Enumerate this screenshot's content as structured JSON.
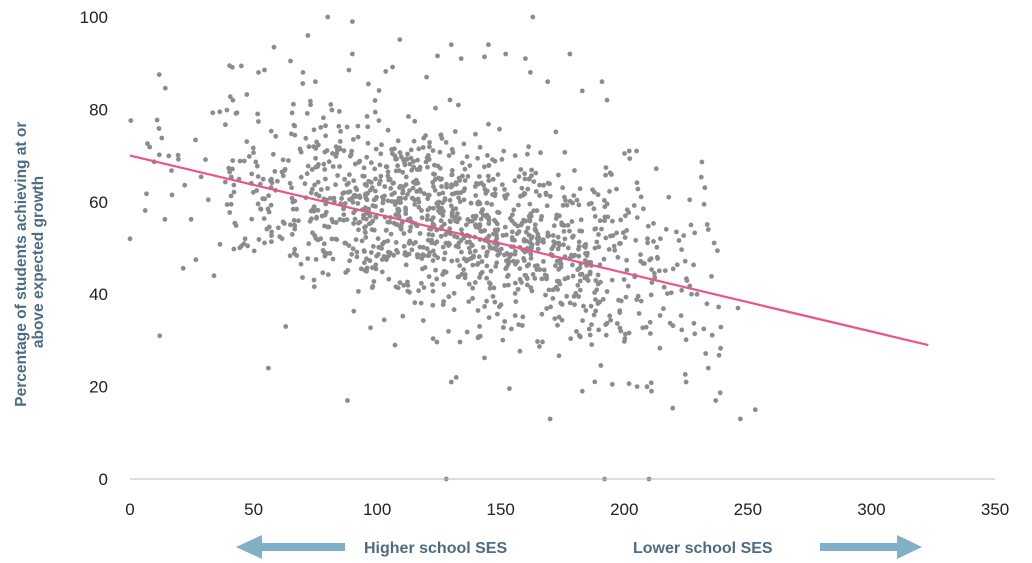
{
  "chart_data": {
    "type": "scatter",
    "title": "",
    "xlabel": "",
    "ylabel_lines": [
      "Percentage of students achieving at or",
      "above expected growth"
    ],
    "xlim": [
      0,
      350
    ],
    "ylim": [
      0,
      100
    ],
    "x_ticks": [
      "0",
      "50",
      "100",
      "150",
      "200",
      "250",
      "300",
      "350"
    ],
    "y_ticks": [
      "0",
      "20",
      "40",
      "60",
      "80",
      "100"
    ],
    "grid": false,
    "point_color": "#8c8c8c",
    "trendline": {
      "x": [
        0,
        323
      ],
      "y": [
        70,
        29
      ],
      "color": "#e8558f"
    },
    "point_count": 1400,
    "notable_points": [
      {
        "x": 0,
        "y": 52
      },
      {
        "x": 12,
        "y": 31
      },
      {
        "x": 34,
        "y": 44
      },
      {
        "x": 56,
        "y": 24
      },
      {
        "x": 63,
        "y": 33
      },
      {
        "x": 88,
        "y": 17
      },
      {
        "x": 80,
        "y": 100
      },
      {
        "x": 90,
        "y": 99
      },
      {
        "x": 163,
        "y": 100
      },
      {
        "x": 72,
        "y": 96
      },
      {
        "x": 90,
        "y": 92
      },
      {
        "x": 130,
        "y": 94
      },
      {
        "x": 145,
        "y": 94
      },
      {
        "x": 152,
        "y": 92
      },
      {
        "x": 178,
        "y": 92
      },
      {
        "x": 134,
        "y": 91
      },
      {
        "x": 160,
        "y": 91
      },
      {
        "x": 52,
        "y": 88
      },
      {
        "x": 70,
        "y": 88
      },
      {
        "x": 162,
        "y": 88
      },
      {
        "x": 191,
        "y": 86
      },
      {
        "x": 75,
        "y": 86
      },
      {
        "x": 169,
        "y": 86
      },
      {
        "x": 120,
        "y": 87
      },
      {
        "x": 128,
        "y": 0
      },
      {
        "x": 192,
        "y": 0
      },
      {
        "x": 210,
        "y": 0
      },
      {
        "x": 247,
        "y": 13
      },
      {
        "x": 253,
        "y": 15
      },
      {
        "x": 237,
        "y": 17
      },
      {
        "x": 170,
        "y": 13
      },
      {
        "x": 130,
        "y": 21
      },
      {
        "x": 132,
        "y": 22
      },
      {
        "x": 183,
        "y": 19
      },
      {
        "x": 211,
        "y": 19
      },
      {
        "x": 225,
        "y": 21
      },
      {
        "x": 234,
        "y": 24
      },
      {
        "x": 246,
        "y": 37
      },
      {
        "x": 234,
        "y": 54
      },
      {
        "x": 227,
        "y": 55
      },
      {
        "x": 218,
        "y": 61
      },
      {
        "x": 202,
        "y": 71
      },
      {
        "x": 205,
        "y": 71
      },
      {
        "x": 193,
        "y": 82
      },
      {
        "x": 183,
        "y": 84
      }
    ],
    "arrow_left_label": "Higher school SES",
    "arrow_right_label": "Lower school SES",
    "arrow_color": "#7fb0c6",
    "label_color": "#4d6b82"
  }
}
